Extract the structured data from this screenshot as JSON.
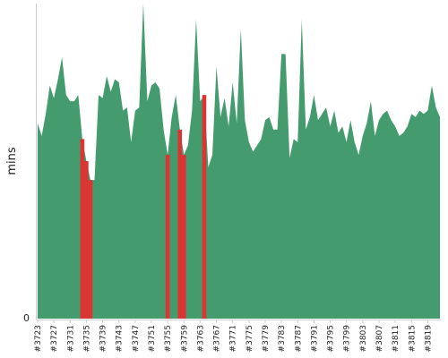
{
  "chart_data": {
    "type": "area",
    "title": "",
    "xlabel": "",
    "ylabel": "mins",
    "ylim": [
      0,
      100
    ],
    "y_ticks": [
      "0"
    ],
    "grid": false,
    "colors": {
      "normal": "#449b6d",
      "failed": "#dd3333"
    },
    "x_tick_labels": [
      "#3723",
      "#3727",
      "#3731",
      "#3735",
      "#3739",
      "#3743",
      "#3747",
      "#3751",
      "#3755",
      "#3759",
      "#3763",
      "#3767",
      "#3771",
      "#3775",
      "#3779",
      "#3783",
      "#3787",
      "#3791",
      "#3795",
      "#3799",
      "#3803",
      "#3807",
      "#3811",
      "#3815",
      "#3819"
    ],
    "x": [
      3723,
      3724,
      3725,
      3726,
      3727,
      3728,
      3729,
      3730,
      3731,
      3732,
      3733,
      3734,
      3735,
      3736,
      3737,
      3738,
      3739,
      3740,
      3741,
      3742,
      3743,
      3744,
      3745,
      3746,
      3747,
      3748,
      3749,
      3750,
      3751,
      3752,
      3753,
      3754,
      3755,
      3756,
      3757,
      3758,
      3759,
      3760,
      3761,
      3762,
      3763,
      3764,
      3765,
      3766,
      3767,
      3768,
      3769,
      3770,
      3771,
      3772,
      3773,
      3774,
      3775,
      3776,
      3777,
      3778,
      3779,
      3780,
      3781,
      3782,
      3783,
      3784,
      3785,
      3786,
      3787,
      3788,
      3789,
      3790,
      3791,
      3792,
      3793,
      3794,
      3795,
      3796,
      3797,
      3798,
      3799,
      3800,
      3801,
      3802,
      3803,
      3804,
      3805,
      3806,
      3807,
      3808,
      3809,
      3810,
      3811,
      3812,
      3813,
      3814,
      3815,
      3816,
      3817,
      3818,
      3819,
      3820,
      3821,
      3822
    ],
    "values": [
      62,
      58,
      65,
      74,
      70,
      76,
      83,
      71,
      69,
      69,
      71,
      57,
      50,
      44,
      44,
      71,
      70,
      77,
      72,
      76,
      75,
      66,
      67,
      56,
      66,
      67,
      100,
      69,
      74,
      75,
      73,
      60,
      52,
      64,
      71,
      60,
      52,
      55,
      66,
      95,
      69,
      71,
      48,
      52,
      80,
      64,
      70,
      61,
      75,
      62,
      92,
      63,
      56,
      53,
      55,
      57,
      63,
      64,
      60,
      60,
      84,
      84,
      51,
      57,
      56,
      95,
      60,
      64,
      71,
      63,
      65,
      67,
      61,
      66,
      59,
      61,
      56,
      63,
      56,
      52,
      58,
      62,
      69,
      58,
      63,
      65,
      66,
      63,
      61,
      58,
      59,
      61,
      65,
      64,
      66,
      65,
      66,
      74,
      67,
      64
    ],
    "failed_builds": [
      3734,
      3735,
      3736,
      3755,
      3758,
      3759,
      3764
    ]
  }
}
